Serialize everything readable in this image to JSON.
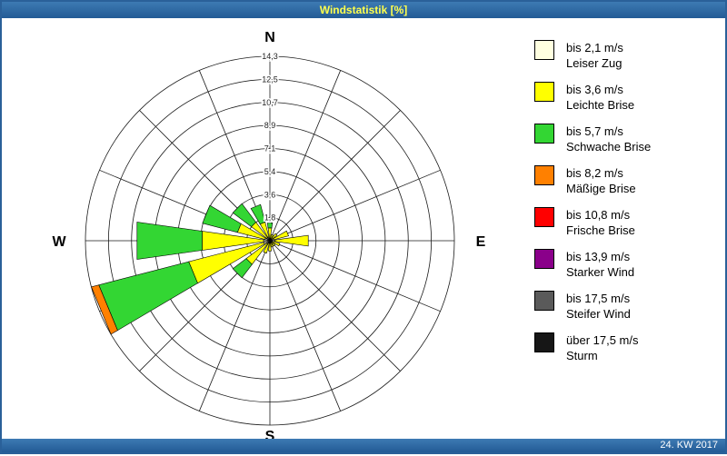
{
  "window": {
    "title": "Windstatistik [%]",
    "footer": "24. KW 2017"
  },
  "compass": {
    "n": "N",
    "e": "E",
    "s": "S",
    "w": "W"
  },
  "legend": {
    "items": [
      {
        "speed": "bis 2,1 m/s",
        "name": "Leiser Zug",
        "color": "#FFFFE0"
      },
      {
        "speed": "bis 3,6 m/s",
        "name": "Leichte Brise",
        "color": "#FFFF00"
      },
      {
        "speed": "bis 5,7 m/s",
        "name": "Schwache Brise",
        "color": "#33D633"
      },
      {
        "speed": "bis 8,2 m/s",
        "name": "Mäßige Brise",
        "color": "#FF8000"
      },
      {
        "speed": "bis 10,8 m/s",
        "name": "Frische Brise",
        "color": "#FF0000"
      },
      {
        "speed": "bis 13,9 m/s",
        "name": "Starker Wind",
        "color": "#8A008A"
      },
      {
        "speed": "bis 17,5 m/s",
        "name": "Steifer Wind",
        "color": "#5A5A5A"
      },
      {
        "speed": "über 17,5 m/s",
        "name": "Sturm",
        "color": "#161616"
      }
    ]
  },
  "chart_data": {
    "type": "windrose",
    "title": "Windstatistik [%]",
    "unit": "%",
    "max_value": 14.3,
    "ring_labels": [
      "1,8",
      "3,6",
      "5,4",
      "7,1",
      "8,9",
      "10,7",
      "12,5",
      "14,3"
    ],
    "ring_values": [
      1.8,
      3.6,
      5.4,
      7.1,
      8.9,
      10.7,
      12.5,
      14.3
    ],
    "directions": [
      "N",
      "NNE",
      "NE",
      "ENE",
      "E",
      "ESE",
      "SE",
      "SSE",
      "S",
      "SSW",
      "SW",
      "WSW",
      "W",
      "WNW",
      "NW",
      "NNW"
    ],
    "petal_width_deg": 16,
    "series": [
      {
        "name": "bis 2,1 m/s",
        "color": "#FFFFE0",
        "values": [
          0.2,
          0.1,
          0.2,
          0.3,
          0.4,
          0.2,
          0.1,
          0.1,
          0.2,
          0.2,
          0.3,
          0.5,
          0.5,
          0.4,
          0.3,
          0.3
        ]
      },
      {
        "name": "bis 3,6 m/s",
        "color": "#FFFF00",
        "values": [
          0.8,
          0.4,
          0.5,
          1.2,
          2.6,
          0.6,
          0.4,
          0.4,
          0.6,
          0.8,
          2.0,
          6.0,
          4.8,
          2.2,
          1.5,
          1.2
        ]
      },
      {
        "name": "bis 5,7 m/s",
        "color": "#33D633",
        "values": [
          0.4,
          0,
          0,
          0,
          0,
          0,
          0,
          0,
          0,
          0,
          1.3,
          7.2,
          5.1,
          2.8,
          1.8,
          1.4
        ]
      },
      {
        "name": "bis 8,2 m/s",
        "color": "#FF8000",
        "values": [
          0,
          0,
          0,
          0,
          0,
          0,
          0,
          0,
          0,
          0,
          0,
          0.6,
          0,
          0,
          0,
          0
        ]
      },
      {
        "name": "bis 10,8 m/s",
        "color": "#FF0000",
        "values": [
          0,
          0,
          0,
          0,
          0,
          0,
          0,
          0,
          0,
          0,
          0,
          0,
          0,
          0,
          0,
          0
        ]
      },
      {
        "name": "bis 13,9 m/s",
        "color": "#8A008A",
        "values": [
          0,
          0,
          0,
          0,
          0,
          0,
          0,
          0,
          0,
          0,
          0,
          0,
          0,
          0,
          0,
          0
        ]
      },
      {
        "name": "bis 17,5 m/s",
        "color": "#5A5A5A",
        "values": [
          0,
          0,
          0,
          0,
          0,
          0,
          0,
          0,
          0,
          0,
          0,
          0,
          0,
          0,
          0,
          0
        ]
      },
      {
        "name": "über 17,5 m/s",
        "color": "#161616",
        "values": [
          0,
          0,
          0,
          0,
          0,
          0,
          0,
          0,
          0,
          0,
          0,
          0,
          0,
          0,
          0,
          0
        ]
      }
    ]
  }
}
